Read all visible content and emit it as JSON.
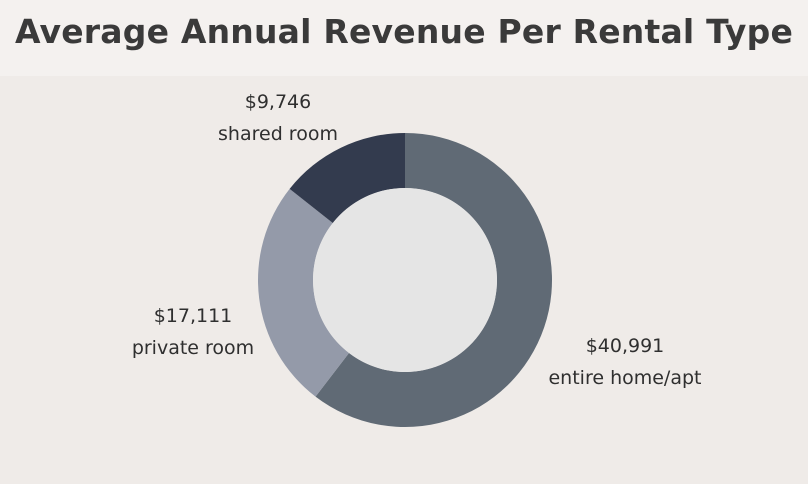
{
  "title": "Average Annual Revenue Per Rental Type",
  "chart_data": {
    "type": "pie",
    "title": "Average Annual Revenue Per Rental Type",
    "donut": true,
    "categories": [
      "entire home/apt",
      "private room",
      "shared room"
    ],
    "values": [
      40991,
      17111,
      9746
    ],
    "value_labels": [
      "$40,991",
      "$17,111",
      "$9,746"
    ],
    "colors": [
      "#606a75",
      "#949aa9",
      "#333b4e"
    ],
    "center_color": "#e5e5e5",
    "legend": "none"
  }
}
